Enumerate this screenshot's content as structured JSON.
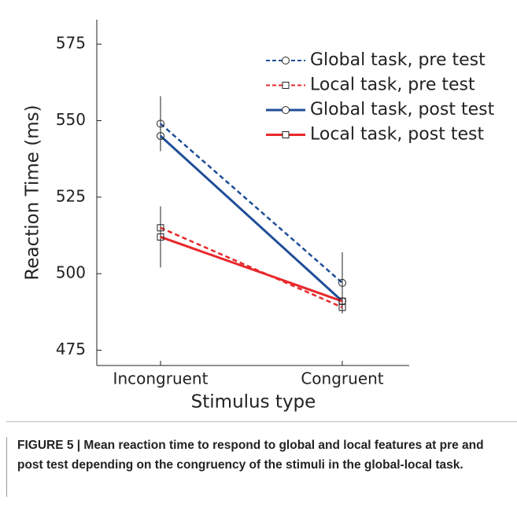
{
  "chart_data": {
    "type": "line",
    "x_label": "Stimulus type",
    "y_label": "Reaction Time  (ms)",
    "categories": [
      "Incongruent",
      "Congruent"
    ],
    "series": [
      {
        "name": "Global task, pre test",
        "color": "#1f4e99",
        "dashed": true,
        "marker": "circle",
        "values": [
          549,
          497
        ],
        "errors": [
          9,
          10
        ]
      },
      {
        "name": "Local task, pre test",
        "color": "#e8282b",
        "dashed": true,
        "marker": "square",
        "values": [
          515,
          489
        ]
      },
      {
        "name": "Global task, post test",
        "color": "#1f4e99",
        "dashed": false,
        "marker": "circle",
        "values": [
          545,
          491
        ]
      },
      {
        "name": "Local task, post test",
        "color": "#e8282b",
        "dashed": false,
        "marker": "square",
        "values": [
          512,
          491
        ],
        "errors": [
          10,
          null
        ]
      }
    ],
    "ylim": [
      470,
      583
    ],
    "yticks": [
      475,
      500,
      525,
      550,
      575
    ],
    "legend": "upper right",
    "caption": "FIGURE 5 | Mean reaction time to respond to global and local features at pre and post test depending on the congruency of the stimuli in the global-local task."
  }
}
